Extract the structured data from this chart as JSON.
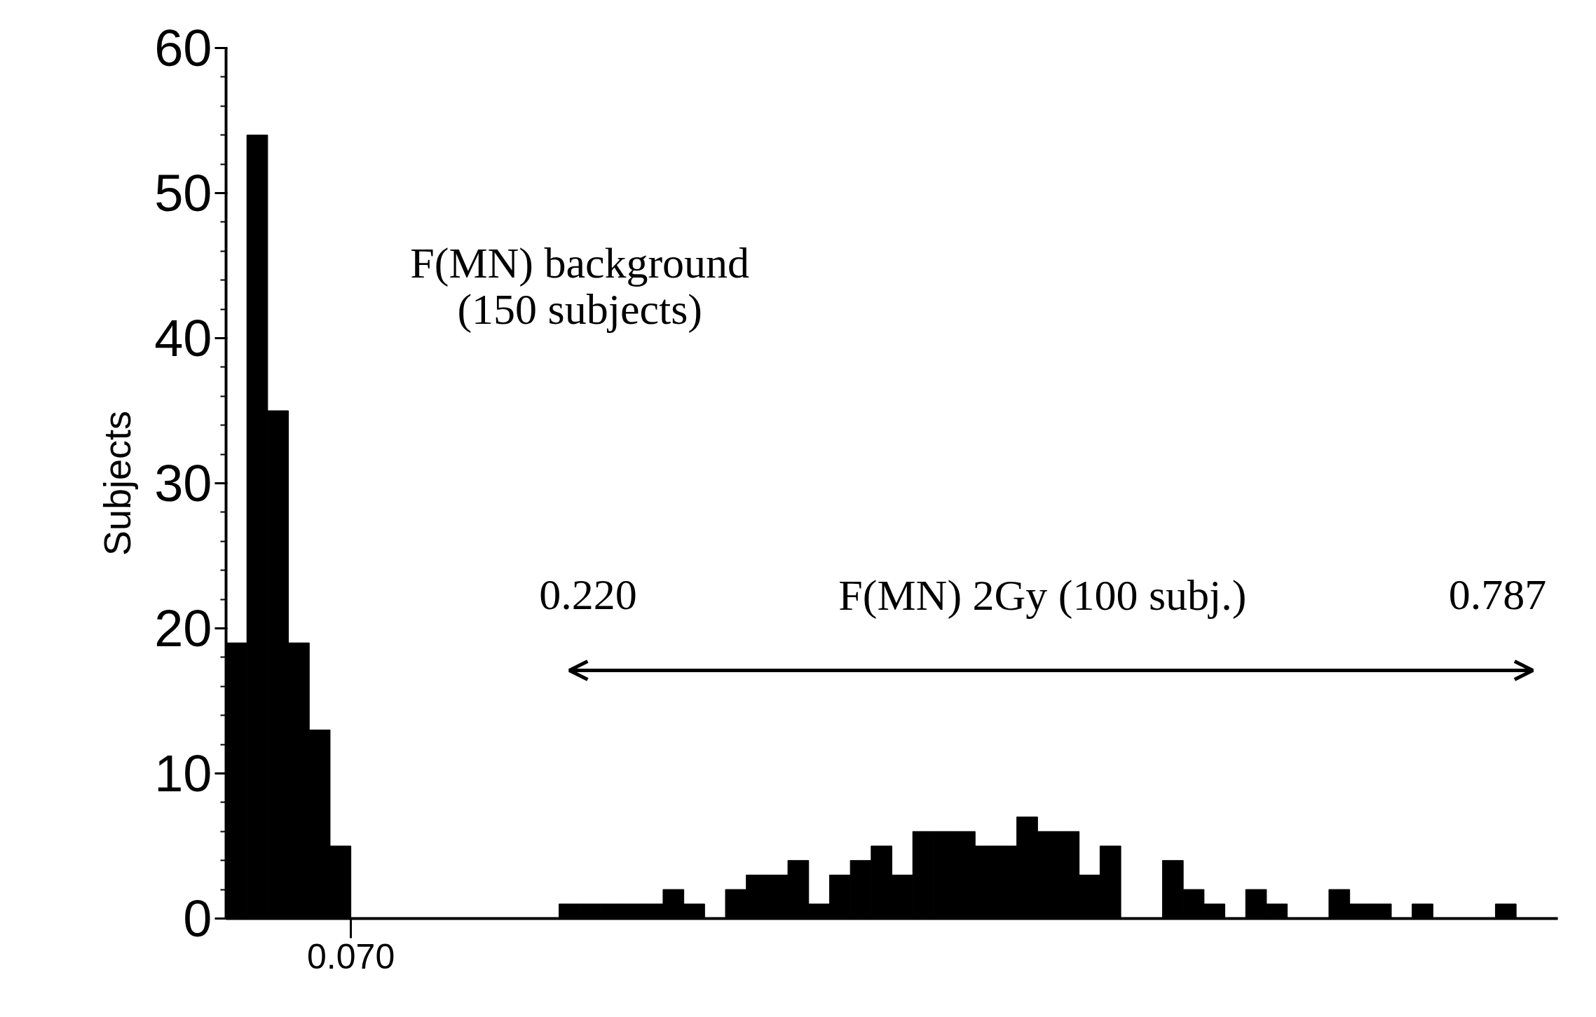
{
  "chart_data": {
    "type": "bar",
    "categories": [
      null,
      null,
      null,
      null,
      null,
      null,
      null,
      null,
      null,
      null,
      null,
      null,
      null,
      null,
      null,
      null,
      null,
      null,
      null,
      null,
      null,
      null,
      null,
      null,
      null,
      null,
      null,
      null,
      null,
      null,
      null,
      null,
      null,
      null,
      null,
      null,
      null,
      null,
      null,
      null,
      null,
      null,
      null,
      null,
      null,
      null,
      null,
      null,
      null,
      null,
      null,
      null,
      null,
      null,
      null,
      null,
      null,
      null,
      null,
      null,
      null,
      null,
      null,
      null
    ],
    "values": [
      19,
      54,
      35,
      19,
      13,
      5,
      0,
      0,
      0,
      0,
      0,
      0,
      0,
      0,
      0,
      0,
      1,
      1,
      1,
      1,
      1,
      2,
      1,
      0,
      2,
      3,
      3,
      4,
      1,
      3,
      4,
      5,
      3,
      6,
      6,
      6,
      5,
      5,
      7,
      6,
      6,
      3,
      5,
      0,
      0,
      4,
      2,
      1,
      0,
      2,
      1,
      0,
      0,
      2,
      1,
      1,
      0,
      1,
      0,
      0,
      0,
      1,
      0,
      0
    ],
    "color": "#000000",
    "ylim": [
      0,
      60
    ],
    "yticks": [
      0,
      10,
      20,
      30,
      40,
      50,
      60
    ],
    "ylabel": "Subjects",
    "annotations": [
      "0.070",
      "F(MN) background",
      "(150 subjects)",
      "0.220",
      "F(MN) 2Gy  (100 subj.)",
      "0.787"
    ]
  }
}
